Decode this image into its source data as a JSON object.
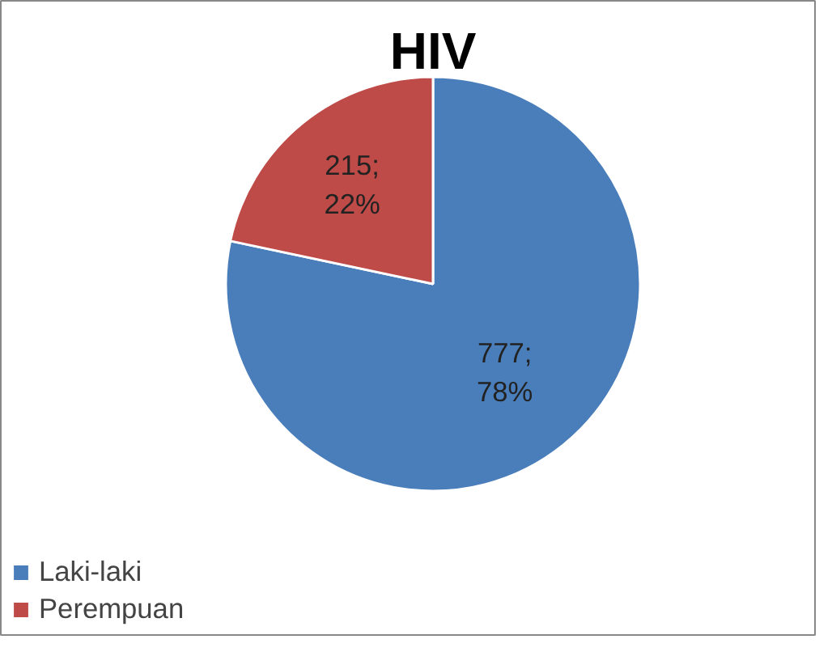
{
  "chart_data": {
    "type": "pie",
    "title": "HIV",
    "categories": [
      "Laki-laki",
      "Perempuan"
    ],
    "values": [
      777,
      215
    ],
    "value_labels": [
      "777; 78%",
      "215; 22%"
    ],
    "colors": [
      "#4a7ebb",
      "#be4b48"
    ],
    "legend": "bottom left"
  }
}
